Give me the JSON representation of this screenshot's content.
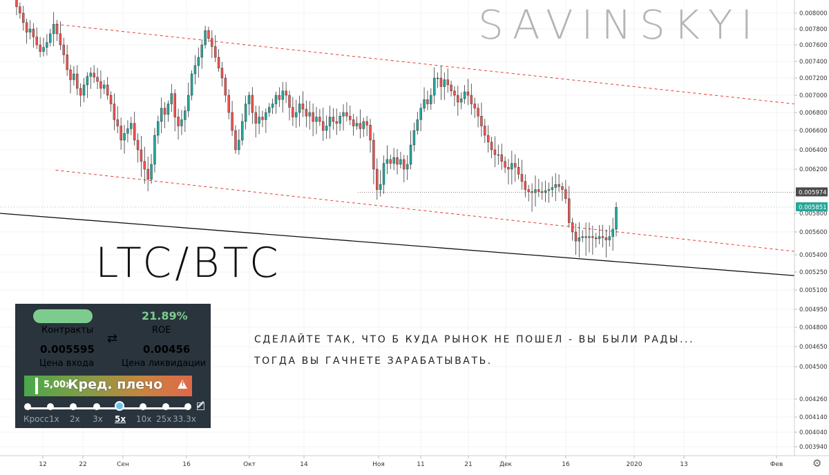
{
  "watermark": "SAVINSKYI",
  "pair_title": "LTC/BTC",
  "caption": [
    "СДЕЛАЙТЕ ТАК, ЧТО Б КУДА РЫНОК НЕ ПОШЕЛ - ВЫ БЫЛИ РАДЫ...",
    "ТОГДА ВЫ ГАЧНЕТЕ ЗАРАБАТЫВАТЬ."
  ],
  "panel": {
    "roe_value": "21.89%",
    "contracts_label": "Контракты",
    "roe_label": "ROE",
    "swap_icon": "swap-arrows-icon",
    "entry_value": "0.005595",
    "entry_label": "Цена входа",
    "liq_value": "0.00456",
    "liq_label": "Цена ликвидации",
    "leverage_value": "5,00x",
    "leverage_label": "Кред. плечо",
    "warning_icon": "warning-icon",
    "edit_icon": "edit-icon",
    "multipliers": [
      "Кросс",
      "1x",
      "2x",
      "3x",
      "5x",
      "10x",
      "25x",
      "33.3x"
    ],
    "selected_multiplier": "5x"
  },
  "colors": {
    "up": "#26a69a",
    "down": "#ef5350",
    "channel": "#e53935",
    "panel_bg": "#29343d",
    "accent_green": "#7dcc8e",
    "current_price_tag": "#26a69a"
  },
  "chart_data": {
    "type": "candlestick",
    "y_ticks": [
      "0.008000",
      "0.007800",
      "0.007600",
      "0.007400",
      "0.007200",
      "0.007000",
      "0.006800",
      "0.006600",
      "0.006400",
      "0.006200",
      "0.005800",
      "0.005600",
      "0.005400",
      "0.005250",
      "0.005100",
      "0.004950",
      "0.004800",
      "0.004650",
      "0.004500",
      "0.004260",
      "0.004140",
      "0.004040",
      "0.003940"
    ],
    "x_ticks": [
      "12",
      "22",
      "Сен",
      "16",
      "Окт",
      "14",
      "Ноя",
      "11",
      "21",
      "Дек",
      "16",
      "2020",
      "13",
      "Фев"
    ],
    "price_labels": {
      "reference": "0.005974",
      "current": "0.005851"
    },
    "closes": [
      0.00808,
      0.008,
      0.00788,
      0.00776,
      0.0078,
      0.0077,
      0.0076,
      0.00752,
      0.00757,
      0.00763,
      0.00774,
      0.00786,
      0.00774,
      0.0076,
      0.00748,
      0.0073,
      0.00718,
      0.00725,
      0.00708,
      0.007,
      0.00712,
      0.00722,
      0.00726,
      0.00721,
      0.00716,
      0.00708,
      0.00712,
      0.007,
      0.0069,
      0.00672,
      0.00665,
      0.0065,
      0.00657,
      0.00662,
      0.00668,
      0.0065,
      0.0064,
      0.00628,
      0.0062,
      0.0061,
      0.00625,
      0.00655,
      0.0067,
      0.00685,
      0.00678,
      0.0069,
      0.00702,
      0.00675,
      0.00665,
      0.00672,
      0.00682,
      0.007,
      0.00725,
      0.00735,
      0.00745,
      0.0076,
      0.00778,
      0.00768,
      0.00758,
      0.00745,
      0.00732,
      0.0072,
      0.007,
      0.0068,
      0.0066,
      0.0064,
      0.0065,
      0.0067,
      0.0069,
      0.007,
      0.0068,
      0.00668,
      0.00675,
      0.00672,
      0.0068,
      0.00686,
      0.0069,
      0.007,
      0.00695,
      0.00705,
      0.007,
      0.00686,
      0.00675,
      0.0068,
      0.0069,
      0.00684,
      0.00676,
      0.0068,
      0.0067,
      0.00675,
      0.0067,
      0.0066,
      0.00665,
      0.00675,
      0.0067,
      0.00668,
      0.00676,
      0.0068,
      0.00676,
      0.00672,
      0.00665,
      0.00668,
      0.00662,
      0.0067,
      0.00666,
      0.0065,
      0.0062,
      0.006,
      0.00605,
      0.00626,
      0.0063,
      0.00626,
      0.00632,
      0.00625,
      0.0063,
      0.0062,
      0.00625,
      0.00645,
      0.0066,
      0.00672,
      0.00685,
      0.00695,
      0.0069,
      0.007,
      0.0072,
      0.0072,
      0.0071,
      0.00718,
      0.00712,
      0.00705,
      0.007,
      0.00692,
      0.00696,
      0.00704,
      0.007,
      0.0069,
      0.00685,
      0.00676,
      0.00665,
      0.00655,
      0.00648,
      0.0064,
      0.00635,
      0.00635,
      0.00628,
      0.00622,
      0.0062,
      0.00626,
      0.00622,
      0.00615,
      0.00608,
      0.006,
      0.00598,
      0.00597,
      0.006,
      0.00598,
      0.00597,
      0.00599,
      0.006,
      0.00602,
      0.00605,
      0.00603,
      0.006,
      0.00592,
      0.0057,
      0.0056,
      0.00552,
      0.00555,
      0.00556,
      0.00555,
      0.00556,
      0.00555,
      0.00554,
      0.00556,
      0.00555,
      0.00553,
      0.00556,
      0.00563,
      0.00585
    ],
    "lines": [
      {
        "name": "upper-channel",
        "style": "dashed-red",
        "from": [
          0.07,
          0.00786
        ],
        "to": [
          1.0,
          0.0069
        ]
      },
      {
        "name": "lower-channel",
        "style": "dashed-red",
        "from": [
          0.07,
          0.00619
        ],
        "to": [
          1.0,
          0.00543
        ]
      },
      {
        "name": "support-line",
        "style": "solid-black",
        "from": [
          0.0,
          0.0058
        ],
        "to": [
          1.0,
          0.00522
        ]
      }
    ],
    "grid": true
  }
}
